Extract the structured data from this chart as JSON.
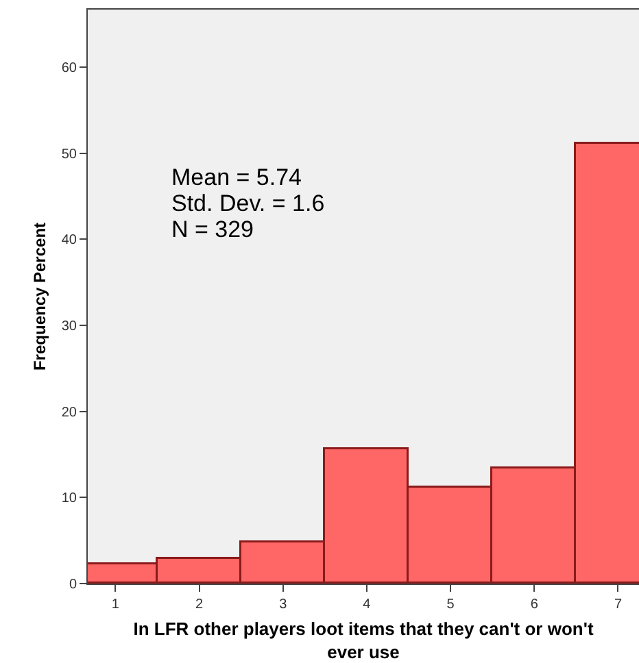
{
  "chart_data": {
    "type": "histogram",
    "xlabel": "In LFR other players loot items that they can't or won't ever use",
    "ylabel": "Frequency Percent",
    "bins": [
      0.5,
      1.5,
      2.5,
      3.5,
      4.5,
      5.5,
      6.5,
      7.5
    ],
    "values": [
      2.2,
      2.9,
      4.7,
      15.6,
      11.1,
      13.3,
      51.1
    ],
    "color": "#ff6666",
    "xlim": [
      0.67,
      7.25
    ],
    "xticks": [
      1,
      2,
      3,
      4,
      5,
      6,
      7
    ],
    "ylim": [
      0,
      66.7
    ],
    "yticks": [
      0,
      10,
      20,
      30,
      40,
      50,
      60
    ],
    "grid": false,
    "legend": false,
    "annotations": [
      "Mean = 5.74",
      "Std. Dev. = 1.6",
      "N = 329"
    ]
  }
}
